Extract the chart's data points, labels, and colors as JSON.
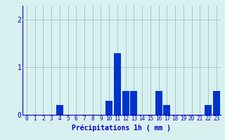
{
  "hours": [
    0,
    1,
    2,
    3,
    4,
    5,
    6,
    7,
    8,
    9,
    10,
    11,
    12,
    13,
    14,
    15,
    16,
    17,
    18,
    19,
    20,
    21,
    22,
    23
  ],
  "values": [
    0,
    0,
    0,
    0,
    0.2,
    0,
    0,
    0,
    0,
    0,
    0.3,
    1.3,
    0.5,
    0.5,
    0,
    0,
    0.5,
    0.2,
    0,
    0,
    0,
    0,
    0.2,
    0.5
  ],
  "bar_color": "#0033cc",
  "background_color": "#d8f0f0",
  "grid_color": "#a8c8c8",
  "axis_color": "#0000bb",
  "tick_color": "#0000bb",
  "xlabel": "Précipitations 1h ( mm )",
  "xlabel_fontsize": 7,
  "ytick_fontsize": 7,
  "xtick_fontsize": 5.5,
  "yticks": [
    0,
    1,
    2
  ],
  "ylim": [
    0,
    2.3
  ],
  "xlim": [
    -0.5,
    23.5
  ]
}
